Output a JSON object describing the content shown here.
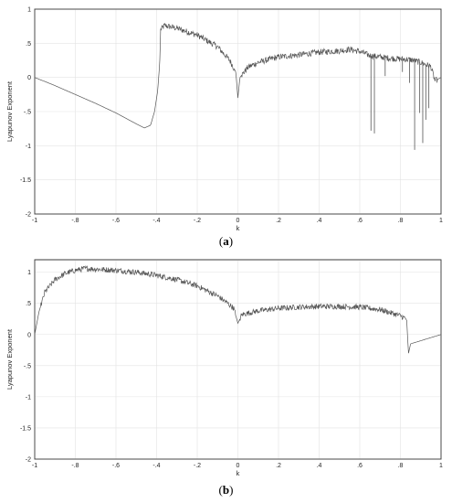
{
  "figure": {
    "caption_a_letter": "a",
    "caption_b_letter": "b"
  },
  "chart_data": [
    {
      "type": "line",
      "panel": "a",
      "xlabel": "k",
      "ylabel": "Lyapunov Exponent",
      "xlim": [
        -1,
        1
      ],
      "ylim": [
        -2,
        1
      ],
      "xticks": [
        -1,
        -0.8,
        -0.6,
        -0.4,
        -0.2,
        0,
        0.2,
        0.4,
        0.6,
        0.8,
        1
      ],
      "yticks": [
        -2,
        -1.5,
        -1,
        -0.5,
        0,
        0.5,
        1
      ],
      "grid": true,
      "series": [
        {
          "color": "#555555",
          "x": [
            -1,
            -0.9,
            -0.8,
            -0.7,
            -0.6,
            -0.5,
            -0.46,
            -0.43,
            -0.41,
            -0.395,
            -0.385,
            -0.38,
            -0.36,
            -0.3,
            -0.2,
            -0.1,
            -0.04,
            -0.01,
            0,
            0.01,
            0.05,
            0.1,
            0.2,
            0.3,
            0.4,
            0.5,
            0.55,
            0.6,
            0.65,
            0.7,
            0.75,
            0.8,
            0.85,
            0.9,
            0.95,
            0.97,
            1.0
          ],
          "y": [
            0.0,
            -0.12,
            -0.25,
            -0.38,
            -0.52,
            -0.68,
            -0.74,
            -0.7,
            -0.5,
            -0.2,
            0.2,
            0.7,
            0.76,
            0.72,
            0.62,
            0.45,
            0.25,
            0.08,
            -0.3,
            0.0,
            0.15,
            0.22,
            0.3,
            0.33,
            0.37,
            0.39,
            0.41,
            0.38,
            0.32,
            0.3,
            0.28,
            0.27,
            0.26,
            0.22,
            0.16,
            -0.05,
            0.0
          ],
          "noise_x_ranges": [
            [
              -0.38,
              -0.02
            ],
            [
              0.02,
              0.98
            ]
          ],
          "dips": [
            {
              "x": 0.655,
              "y": -0.78
            },
            {
              "x": 0.672,
              "y": -0.82
            },
            {
              "x": 0.725,
              "y": 0.02
            },
            {
              "x": 0.81,
              "y": 0.08
            },
            {
              "x": 0.845,
              "y": -0.08
            },
            {
              "x": 0.87,
              "y": -1.06
            },
            {
              "x": 0.895,
              "y": -0.52
            },
            {
              "x": 0.91,
              "y": -0.96
            },
            {
              "x": 0.925,
              "y": -0.62
            },
            {
              "x": 0.94,
              "y": -0.45
            }
          ]
        }
      ]
    },
    {
      "type": "line",
      "panel": "b",
      "xlabel": "k",
      "ylabel": "Lyapunov Exponent",
      "xlim": [
        -1,
        1
      ],
      "ylim": [
        -2,
        1.2
      ],
      "xticks": [
        -1,
        -0.8,
        -0.6,
        -0.4,
        -0.2,
        0,
        0.2,
        0.4,
        0.6,
        0.8,
        1
      ],
      "yticks": [
        -2,
        -1.5,
        -1,
        -0.5,
        0,
        0.5,
        1
      ],
      "grid": true,
      "series": [
        {
          "color": "#555555",
          "x": [
            -1,
            -0.98,
            -0.95,
            -0.9,
            -0.85,
            -0.8,
            -0.75,
            -0.7,
            -0.6,
            -0.5,
            -0.4,
            -0.3,
            -0.2,
            -0.1,
            -0.05,
            -0.02,
            0,
            0.02,
            0.1,
            0.2,
            0.3,
            0.4,
            0.5,
            0.6,
            0.7,
            0.75,
            0.8,
            0.83,
            0.84,
            0.85,
            0.9,
            0.95,
            1.0
          ],
          "y": [
            0.0,
            0.35,
            0.68,
            0.88,
            0.98,
            1.03,
            1.06,
            1.05,
            1.03,
            1.0,
            0.95,
            0.88,
            0.78,
            0.62,
            0.5,
            0.42,
            0.18,
            0.32,
            0.38,
            0.42,
            0.44,
            0.45,
            0.45,
            0.44,
            0.4,
            0.35,
            0.3,
            0.25,
            -0.3,
            -0.15,
            -0.1,
            -0.05,
            0.0
          ],
          "noise_x_ranges": [
            [
              -0.97,
              -0.01
            ],
            [
              0.01,
              0.835
            ]
          ],
          "dips": []
        }
      ]
    }
  ]
}
